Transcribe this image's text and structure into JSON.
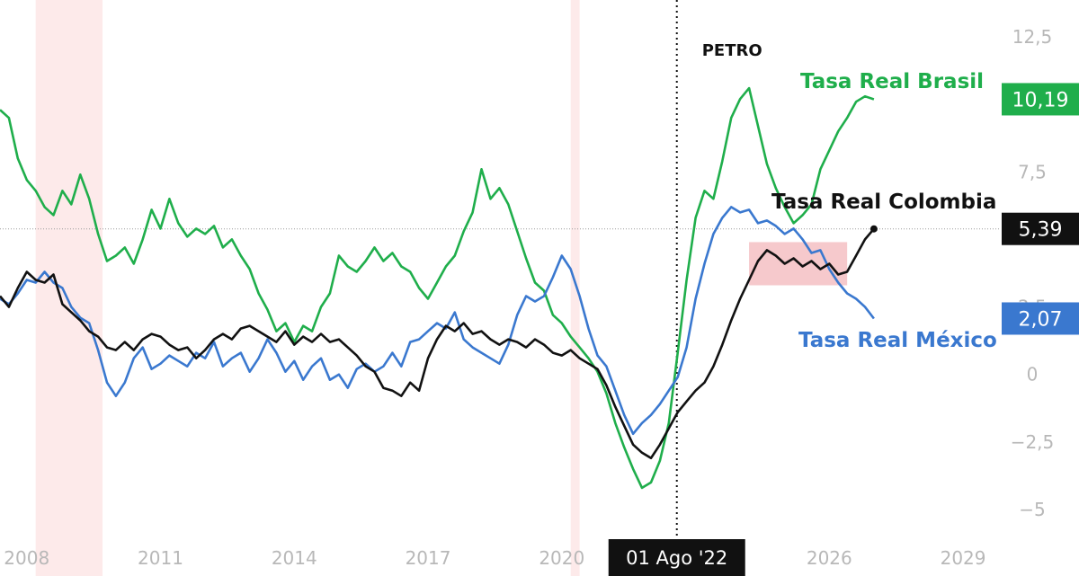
{
  "chart_data": {
    "type": "line",
    "x_unit": "year",
    "x_ticks": [
      "2008",
      "2011",
      "2014",
      "2017",
      "2020",
      "2026",
      "2029"
    ],
    "y_ticks": [
      "12,5",
      "7,5",
      "2,5",
      "0",
      "−2,5",
      "−5"
    ],
    "xlim": [
      2007.4,
      2031.6
    ],
    "ylim": [
      -6.1,
      13.2
    ],
    "grid": false,
    "legend": "none",
    "reference_line": {
      "y": 5.39,
      "style": "dotted"
    },
    "event": {
      "x": 2022.58,
      "label": "PETRO",
      "date_label": "01 Ago '22"
    },
    "recession_bands": [
      [
        2008.2,
        2009.7
      ],
      [
        2020.2,
        2020.4
      ]
    ],
    "highlight_box": {
      "x": [
        2024.2,
        2026.4
      ],
      "y": [
        3.3,
        4.9
      ],
      "color": "#f4c0c3"
    },
    "series": [
      {
        "name": "Tasa Real Brasil",
        "color": "#1fae4b",
        "last_value": "10,19",
        "points": [
          [
            2007.4,
            9.8
          ],
          [
            2007.6,
            9.5
          ],
          [
            2007.8,
            8.0
          ],
          [
            2008.0,
            7.2
          ],
          [
            2008.2,
            6.8
          ],
          [
            2008.4,
            6.2
          ],
          [
            2008.6,
            5.9
          ],
          [
            2008.8,
            6.8
          ],
          [
            2009.0,
            6.3
          ],
          [
            2009.2,
            7.4
          ],
          [
            2009.4,
            6.5
          ],
          [
            2009.6,
            5.2
          ],
          [
            2009.8,
            4.2
          ],
          [
            2010.0,
            4.4
          ],
          [
            2010.2,
            4.7
          ],
          [
            2010.4,
            4.1
          ],
          [
            2010.6,
            5.0
          ],
          [
            2010.8,
            6.1
          ],
          [
            2011.0,
            5.4
          ],
          [
            2011.2,
            6.5
          ],
          [
            2011.4,
            5.6
          ],
          [
            2011.6,
            5.1
          ],
          [
            2011.8,
            5.4
          ],
          [
            2012.0,
            5.2
          ],
          [
            2012.2,
            5.5
          ],
          [
            2012.4,
            4.7
          ],
          [
            2012.6,
            5.0
          ],
          [
            2012.8,
            4.4
          ],
          [
            2013.0,
            3.9
          ],
          [
            2013.2,
            3.0
          ],
          [
            2013.4,
            2.4
          ],
          [
            2013.6,
            1.6
          ],
          [
            2013.8,
            1.9
          ],
          [
            2014.0,
            1.2
          ],
          [
            2014.2,
            1.8
          ],
          [
            2014.4,
            1.6
          ],
          [
            2014.6,
            2.5
          ],
          [
            2014.8,
            3.0
          ],
          [
            2015.0,
            4.4
          ],
          [
            2015.2,
            4.0
          ],
          [
            2015.4,
            3.8
          ],
          [
            2015.6,
            4.2
          ],
          [
            2015.8,
            4.7
          ],
          [
            2016.0,
            4.2
          ],
          [
            2016.2,
            4.5
          ],
          [
            2016.4,
            4.0
          ],
          [
            2016.6,
            3.8
          ],
          [
            2016.8,
            3.2
          ],
          [
            2017.0,
            2.8
          ],
          [
            2017.2,
            3.4
          ],
          [
            2017.4,
            4.0
          ],
          [
            2017.6,
            4.4
          ],
          [
            2017.8,
            5.3
          ],
          [
            2018.0,
            6.0
          ],
          [
            2018.2,
            7.6
          ],
          [
            2018.4,
            6.5
          ],
          [
            2018.6,
            6.9
          ],
          [
            2018.8,
            6.3
          ],
          [
            2019.0,
            5.3
          ],
          [
            2019.2,
            4.3
          ],
          [
            2019.4,
            3.4
          ],
          [
            2019.6,
            3.1
          ],
          [
            2019.8,
            2.2
          ],
          [
            2020.0,
            1.9
          ],
          [
            2020.2,
            1.4
          ],
          [
            2020.4,
            1.0
          ],
          [
            2020.6,
            0.6
          ],
          [
            2020.8,
            0.1
          ],
          [
            2021.0,
            -0.7
          ],
          [
            2021.2,
            -1.8
          ],
          [
            2021.4,
            -2.7
          ],
          [
            2021.6,
            -3.5
          ],
          [
            2021.8,
            -4.2
          ],
          [
            2022.0,
            -4.0
          ],
          [
            2022.2,
            -3.2
          ],
          [
            2022.4,
            -1.8
          ],
          [
            2022.6,
            0.8
          ],
          [
            2022.8,
            3.5
          ],
          [
            2023.0,
            5.8
          ],
          [
            2023.2,
            6.8
          ],
          [
            2023.4,
            6.5
          ],
          [
            2023.6,
            7.9
          ],
          [
            2023.8,
            9.5
          ],
          [
            2024.0,
            10.2
          ],
          [
            2024.2,
            10.6
          ],
          [
            2024.4,
            9.2
          ],
          [
            2024.6,
            7.8
          ],
          [
            2024.8,
            6.9
          ],
          [
            2025.0,
            6.2
          ],
          [
            2025.2,
            5.6
          ],
          [
            2025.4,
            5.9
          ],
          [
            2025.6,
            6.3
          ],
          [
            2025.8,
            7.6
          ],
          [
            2026.0,
            8.3
          ],
          [
            2026.2,
            9.0
          ],
          [
            2026.4,
            9.5
          ],
          [
            2026.6,
            10.1
          ],
          [
            2026.8,
            10.3
          ],
          [
            2027.0,
            10.19
          ]
        ]
      },
      {
        "name": "Tasa Real México",
        "color": "#3a78cf",
        "last_value": "2,07",
        "points": [
          [
            2007.4,
            2.8
          ],
          [
            2007.6,
            2.6
          ],
          [
            2007.8,
            3.0
          ],
          [
            2008.0,
            3.5
          ],
          [
            2008.2,
            3.4
          ],
          [
            2008.4,
            3.8
          ],
          [
            2008.6,
            3.4
          ],
          [
            2008.8,
            3.2
          ],
          [
            2009.0,
            2.5
          ],
          [
            2009.2,
            2.1
          ],
          [
            2009.4,
            1.9
          ],
          [
            2009.6,
            0.9
          ],
          [
            2009.8,
            -0.3
          ],
          [
            2010.0,
            -0.8
          ],
          [
            2010.2,
            -0.3
          ],
          [
            2010.4,
            0.6
          ],
          [
            2010.6,
            1.0
          ],
          [
            2010.8,
            0.2
          ],
          [
            2011.0,
            0.4
          ],
          [
            2011.2,
            0.7
          ],
          [
            2011.4,
            0.5
          ],
          [
            2011.6,
            0.3
          ],
          [
            2011.8,
            0.8
          ],
          [
            2012.0,
            0.6
          ],
          [
            2012.2,
            1.2
          ],
          [
            2012.4,
            0.3
          ],
          [
            2012.6,
            0.6
          ],
          [
            2012.8,
            0.8
          ],
          [
            2013.0,
            0.1
          ],
          [
            2013.2,
            0.6
          ],
          [
            2013.4,
            1.3
          ],
          [
            2013.6,
            0.8
          ],
          [
            2013.8,
            0.1
          ],
          [
            2014.0,
            0.5
          ],
          [
            2014.2,
            -0.2
          ],
          [
            2014.4,
            0.3
          ],
          [
            2014.6,
            0.6
          ],
          [
            2014.8,
            -0.2
          ],
          [
            2015.0,
            0.0
          ],
          [
            2015.2,
            -0.5
          ],
          [
            2015.4,
            0.2
          ],
          [
            2015.6,
            0.4
          ],
          [
            2015.8,
            0.1
          ],
          [
            2016.0,
            0.3
          ],
          [
            2016.2,
            0.8
          ],
          [
            2016.4,
            0.3
          ],
          [
            2016.6,
            1.2
          ],
          [
            2016.8,
            1.3
          ],
          [
            2017.0,
            1.6
          ],
          [
            2017.2,
            1.9
          ],
          [
            2017.4,
            1.7
          ],
          [
            2017.6,
            2.3
          ],
          [
            2017.8,
            1.3
          ],
          [
            2018.0,
            1.0
          ],
          [
            2018.2,
            0.8
          ],
          [
            2018.4,
            0.6
          ],
          [
            2018.6,
            0.4
          ],
          [
            2018.8,
            1.1
          ],
          [
            2019.0,
            2.2
          ],
          [
            2019.2,
            2.9
          ],
          [
            2019.4,
            2.7
          ],
          [
            2019.6,
            2.9
          ],
          [
            2019.8,
            3.6
          ],
          [
            2020.0,
            4.4
          ],
          [
            2020.2,
            3.9
          ],
          [
            2020.4,
            2.9
          ],
          [
            2020.6,
            1.7
          ],
          [
            2020.8,
            0.7
          ],
          [
            2021.0,
            0.3
          ],
          [
            2021.2,
            -0.6
          ],
          [
            2021.4,
            -1.5
          ],
          [
            2021.6,
            -2.2
          ],
          [
            2021.8,
            -1.8
          ],
          [
            2022.0,
            -1.5
          ],
          [
            2022.2,
            -1.1
          ],
          [
            2022.4,
            -0.6
          ],
          [
            2022.6,
            -0.1
          ],
          [
            2022.8,
            1.0
          ],
          [
            2023.0,
            2.8
          ],
          [
            2023.2,
            4.1
          ],
          [
            2023.4,
            5.2
          ],
          [
            2023.6,
            5.8
          ],
          [
            2023.8,
            6.2
          ],
          [
            2024.0,
            6.0
          ],
          [
            2024.2,
            6.1
          ],
          [
            2024.4,
            5.6
          ],
          [
            2024.6,
            5.7
          ],
          [
            2024.8,
            5.5
          ],
          [
            2025.0,
            5.2
          ],
          [
            2025.2,
            5.4
          ],
          [
            2025.4,
            5.0
          ],
          [
            2025.6,
            4.5
          ],
          [
            2025.8,
            4.6
          ],
          [
            2026.0,
            3.9
          ],
          [
            2026.2,
            3.4
          ],
          [
            2026.4,
            3.0
          ],
          [
            2026.6,
            2.8
          ],
          [
            2026.8,
            2.5
          ],
          [
            2027.0,
            2.07
          ]
        ]
      },
      {
        "name": "Tasa Real Colombia",
        "color": "#111111",
        "last_value": "5,39",
        "points": [
          [
            2007.4,
            2.9
          ],
          [
            2007.6,
            2.5
          ],
          [
            2007.8,
            3.2
          ],
          [
            2008.0,
            3.8
          ],
          [
            2008.2,
            3.5
          ],
          [
            2008.4,
            3.4
          ],
          [
            2008.6,
            3.7
          ],
          [
            2008.8,
            2.6
          ],
          [
            2009.0,
            2.3
          ],
          [
            2009.2,
            2.0
          ],
          [
            2009.4,
            1.6
          ],
          [
            2009.6,
            1.4
          ],
          [
            2009.8,
            1.0
          ],
          [
            2010.0,
            0.9
          ],
          [
            2010.2,
            1.2
          ],
          [
            2010.4,
            0.9
          ],
          [
            2010.6,
            1.3
          ],
          [
            2010.8,
            1.5
          ],
          [
            2011.0,
            1.4
          ],
          [
            2011.2,
            1.1
          ],
          [
            2011.4,
            0.9
          ],
          [
            2011.6,
            1.0
          ],
          [
            2011.8,
            0.6
          ],
          [
            2012.0,
            0.9
          ],
          [
            2012.2,
            1.3
          ],
          [
            2012.4,
            1.5
          ],
          [
            2012.6,
            1.3
          ],
          [
            2012.8,
            1.7
          ],
          [
            2013.0,
            1.8
          ],
          [
            2013.2,
            1.6
          ],
          [
            2013.4,
            1.4
          ],
          [
            2013.6,
            1.2
          ],
          [
            2013.8,
            1.6
          ],
          [
            2014.0,
            1.1
          ],
          [
            2014.2,
            1.4
          ],
          [
            2014.4,
            1.2
          ],
          [
            2014.6,
            1.5
          ],
          [
            2014.8,
            1.2
          ],
          [
            2015.0,
            1.3
          ],
          [
            2015.2,
            1.0
          ],
          [
            2015.4,
            0.7
          ],
          [
            2015.6,
            0.3
          ],
          [
            2015.8,
            0.1
          ],
          [
            2016.0,
            -0.5
          ],
          [
            2016.2,
            -0.6
          ],
          [
            2016.4,
            -0.8
          ],
          [
            2016.6,
            -0.3
          ],
          [
            2016.8,
            -0.6
          ],
          [
            2017.0,
            0.6
          ],
          [
            2017.2,
            1.3
          ],
          [
            2017.4,
            1.8
          ],
          [
            2017.6,
            1.6
          ],
          [
            2017.8,
            1.9
          ],
          [
            2018.0,
            1.5
          ],
          [
            2018.2,
            1.6
          ],
          [
            2018.4,
            1.3
          ],
          [
            2018.6,
            1.1
          ],
          [
            2018.8,
            1.3
          ],
          [
            2019.0,
            1.2
          ],
          [
            2019.2,
            1.0
          ],
          [
            2019.4,
            1.3
          ],
          [
            2019.6,
            1.1
          ],
          [
            2019.8,
            0.8
          ],
          [
            2020.0,
            0.7
          ],
          [
            2020.2,
            0.9
          ],
          [
            2020.4,
            0.6
          ],
          [
            2020.6,
            0.4
          ],
          [
            2020.8,
            0.2
          ],
          [
            2021.0,
            -0.4
          ],
          [
            2021.2,
            -1.2
          ],
          [
            2021.4,
            -1.9
          ],
          [
            2021.6,
            -2.6
          ],
          [
            2021.8,
            -2.9
          ],
          [
            2022.0,
            -3.1
          ],
          [
            2022.2,
            -2.6
          ],
          [
            2022.4,
            -2.0
          ],
          [
            2022.6,
            -1.4
          ],
          [
            2022.8,
            -1.0
          ],
          [
            2023.0,
            -0.6
          ],
          [
            2023.2,
            -0.3
          ],
          [
            2023.4,
            0.3
          ],
          [
            2023.6,
            1.1
          ],
          [
            2023.8,
            2.0
          ],
          [
            2024.0,
            2.8
          ],
          [
            2024.2,
            3.5
          ],
          [
            2024.4,
            4.2
          ],
          [
            2024.6,
            4.6
          ],
          [
            2024.8,
            4.4
          ],
          [
            2025.0,
            4.1
          ],
          [
            2025.2,
            4.3
          ],
          [
            2025.4,
            4.0
          ],
          [
            2025.6,
            4.2
          ],
          [
            2025.8,
            3.9
          ],
          [
            2026.0,
            4.1
          ],
          [
            2026.2,
            3.7
          ],
          [
            2026.4,
            3.8
          ],
          [
            2026.6,
            4.4
          ],
          [
            2026.8,
            5.0
          ],
          [
            2027.0,
            5.39
          ]
        ]
      }
    ]
  }
}
